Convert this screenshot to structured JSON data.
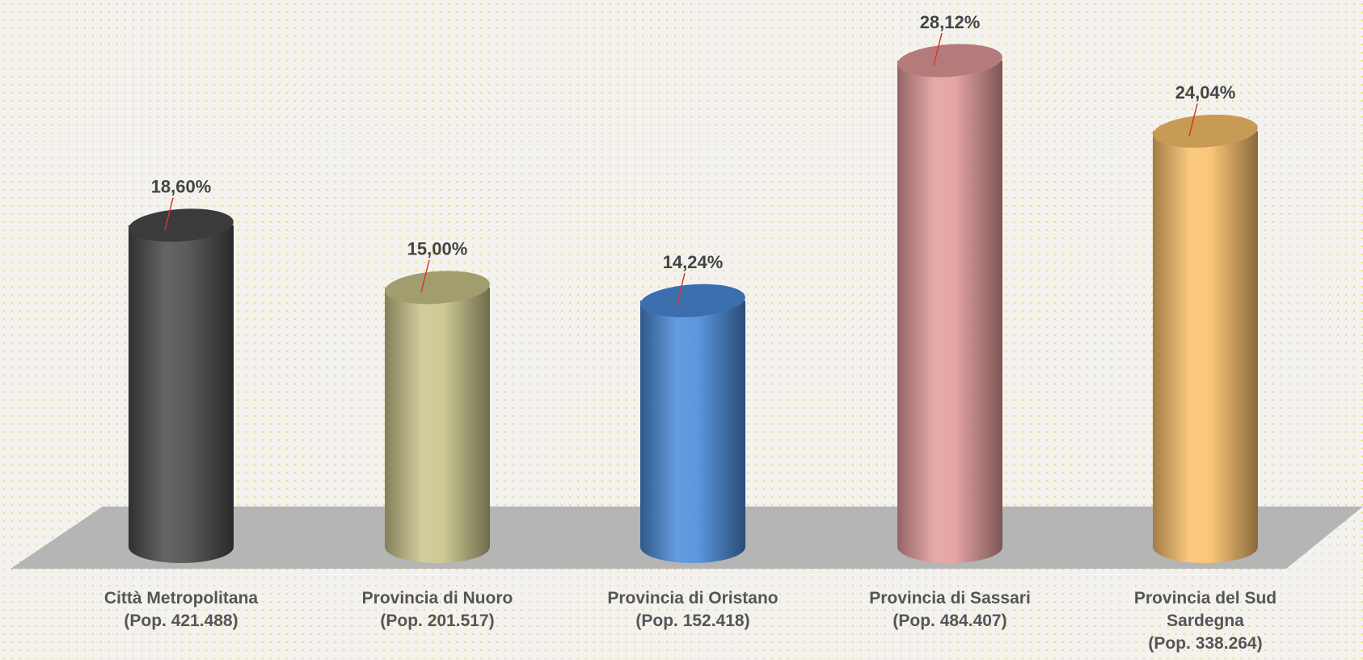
{
  "chart_data": {
    "type": "bar3d",
    "categories": [
      "Città Metropolitana\n(Pop. 421.488)",
      "Provincia di Nuoro\n(Pop. 201.517)",
      "Provincia di Oristano\n(Pop. 152.418)",
      "Provincia di Sassari\n(Pop. 484.407)",
      "Provincia del Sud\nSardegna\n(Pop. 338.264)"
    ],
    "values": [
      18.6,
      15.0,
      14.24,
      28.12,
      24.04
    ],
    "value_labels": [
      "18,60%",
      "15,00%",
      "14,24%",
      "28,12%",
      "24,04%"
    ],
    "colors": [
      "#4a4a4a",
      "#c9c48a",
      "#4a8ad8",
      "#e29a9a",
      "#f9c06a"
    ]
  }
}
